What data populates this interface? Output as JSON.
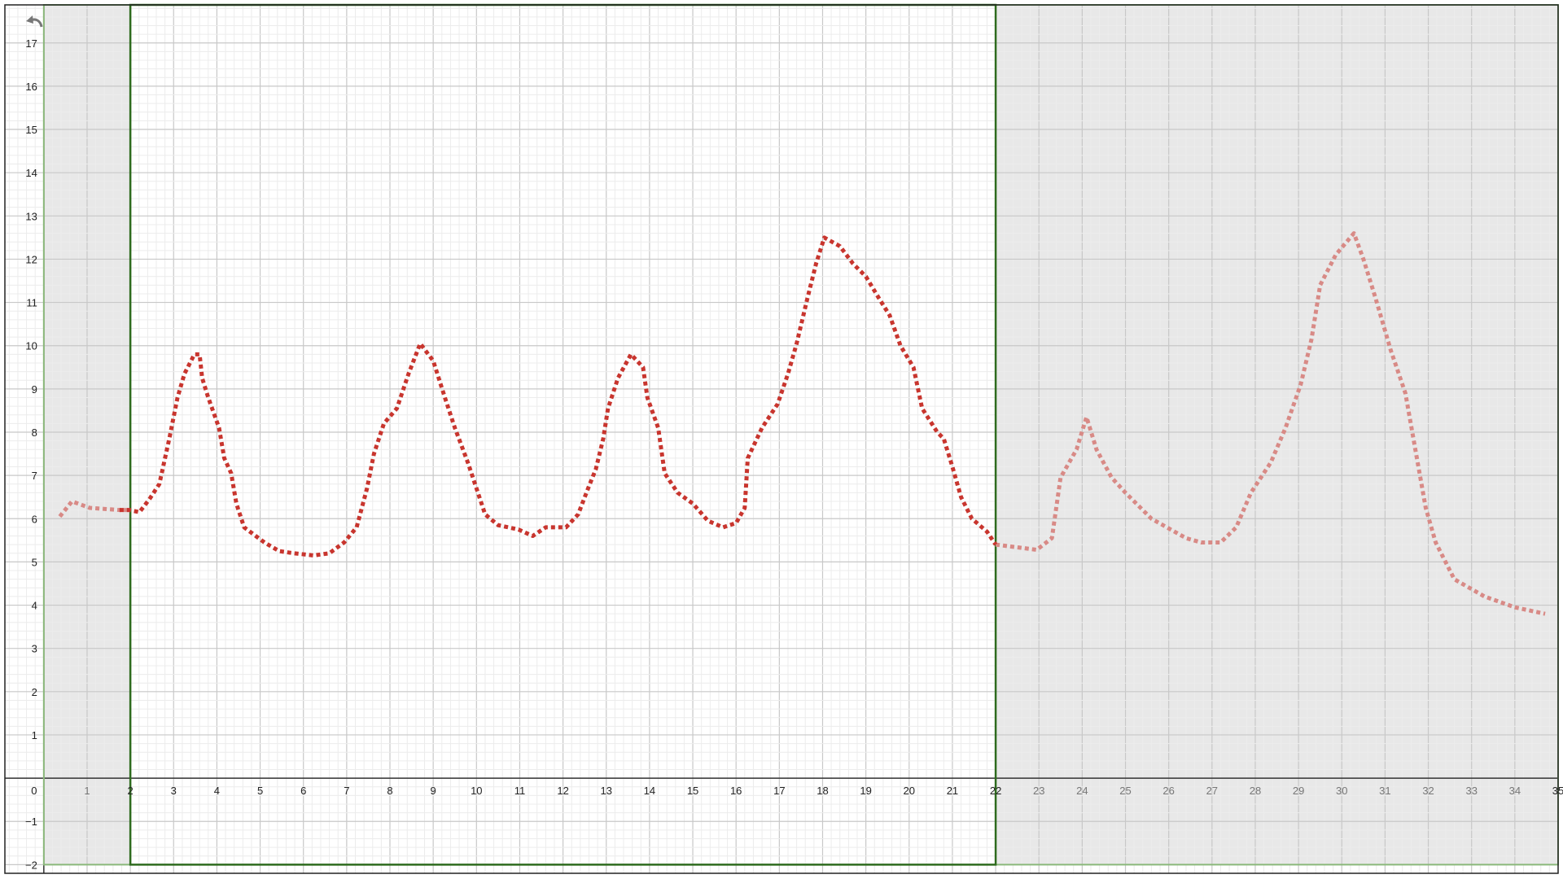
{
  "chart_data": {
    "type": "line",
    "title": "",
    "xlabel": "",
    "ylabel": "",
    "xlim": [
      -0.9,
      35.0
    ],
    "ylim": [
      -2.2,
      17.88
    ],
    "grid": true,
    "minor_grid_step": 0.2,
    "x_ticks": [
      0,
      1,
      2,
      3,
      4,
      5,
      6,
      7,
      8,
      9,
      10,
      11,
      12,
      13,
      14,
      15,
      16,
      17,
      18,
      19,
      20,
      21,
      22,
      23,
      24,
      25,
      26,
      27,
      28,
      29,
      30,
      31,
      32,
      33,
      34,
      35
    ],
    "y_ticks": [
      -2,
      -1,
      1,
      2,
      3,
      4,
      5,
      6,
      7,
      8,
      9,
      10,
      11,
      12,
      13,
      14,
      15,
      16,
      17
    ],
    "selected_range": {
      "x": [
        2,
        22
      ],
      "y": [
        -2,
        17.88
      ]
    },
    "shaded_ranges": [
      [
        0,
        2
      ],
      [
        22,
        35.0
      ]
    ],
    "colors": {
      "line": "#c8352e",
      "line_outside": "#d88a86",
      "selection_border": "#2e6b1e",
      "shaded_border": "#8ab87a",
      "shade": "#e8e8e8"
    },
    "series": [
      {
        "style": "dotted",
        "x": [
          0.37,
          0.65,
          1.06,
          1.75,
          1.98,
          2.21,
          2.44,
          2.67,
          2.9,
          3.09,
          3.25,
          3.48,
          3.6,
          3.66,
          3.8,
          4.05,
          4.17,
          4.33,
          4.45,
          4.63,
          5.1,
          5.44,
          5.78,
          6.24,
          6.6,
          6.94,
          7.23,
          7.47,
          7.63,
          7.86,
          8.16,
          8.43,
          8.7,
          9.0,
          9.27,
          9.5,
          9.8,
          10.0,
          10.2,
          10.5,
          10.97,
          11.3,
          11.6,
          12.07,
          12.35,
          12.58,
          12.76,
          12.93,
          13.04,
          13.27,
          13.57,
          13.85,
          13.95,
          14.2,
          14.35,
          14.65,
          15.0,
          15.35,
          15.7,
          16.0,
          16.2,
          16.27,
          16.6,
          16.96,
          17.2,
          17.4,
          17.65,
          17.85,
          18.04,
          18.4,
          18.7,
          19.0,
          19.3,
          19.55,
          19.8,
          20.1,
          20.3,
          20.65,
          20.8,
          21.0,
          21.2,
          21.45,
          21.8,
          22.0,
          22.95,
          23.3,
          23.5,
          23.87,
          24.1,
          24.33,
          24.68,
          25.0,
          25.6,
          26.4,
          26.75,
          27.2,
          27.56,
          27.9,
          28.36,
          28.7,
          29.05,
          29.3,
          29.5,
          29.86,
          30.28,
          30.5,
          30.78,
          31.13,
          31.47,
          31.7,
          31.94,
          32.17,
          32.6,
          33.3,
          34.0,
          34.7
        ],
        "y": [
          6.05,
          6.4,
          6.25,
          6.2,
          6.2,
          6.15,
          6.45,
          6.8,
          7.85,
          8.8,
          9.35,
          9.8,
          9.8,
          9.25,
          8.8,
          8.1,
          7.4,
          7.05,
          6.35,
          5.8,
          5.45,
          5.25,
          5.2,
          5.15,
          5.2,
          5.45,
          5.8,
          6.7,
          7.5,
          8.2,
          8.55,
          9.35,
          10.05,
          9.65,
          8.8,
          8.1,
          7.3,
          6.7,
          6.1,
          5.85,
          5.75,
          5.6,
          5.8,
          5.8,
          6.1,
          6.7,
          7.15,
          7.85,
          8.55,
          9.25,
          9.8,
          9.5,
          8.8,
          8.1,
          7.05,
          6.6,
          6.35,
          5.95,
          5.8,
          5.9,
          6.25,
          7.4,
          8.1,
          8.65,
          9.35,
          10.05,
          11.1,
          11.9,
          12.5,
          12.3,
          11.9,
          11.6,
          11.1,
          10.7,
          10.0,
          9.5,
          8.55,
          8.0,
          7.85,
          7.2,
          6.5,
          6.0,
          5.7,
          5.4,
          5.28,
          5.55,
          6.95,
          7.6,
          8.35,
          7.6,
          6.95,
          6.6,
          6.0,
          5.55,
          5.45,
          5.45,
          5.8,
          6.6,
          7.3,
          8.1,
          9.1,
          10.15,
          11.4,
          12.1,
          12.6,
          12.0,
          11.1,
          9.9,
          8.9,
          7.6,
          6.25,
          5.45,
          4.6,
          4.2,
          3.95,
          3.8
        ]
      }
    ]
  },
  "toolbar": {
    "undo_icon": "undo-arrow-icon"
  }
}
